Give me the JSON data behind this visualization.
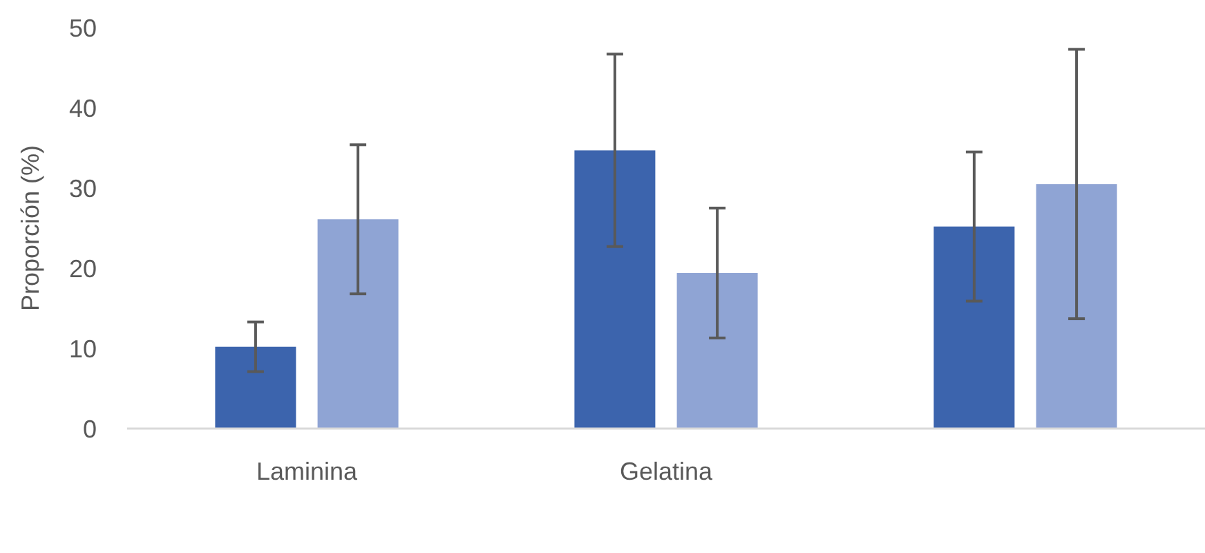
{
  "chart_data": {
    "type": "bar",
    "ylabel": "Proporción (%)",
    "categories": [
      "Laminina",
      "Gelatina",
      null
    ],
    "series": [
      {
        "color": "#3c64ad",
        "values": [
          10.2,
          34.7,
          25.2
        ],
        "errors": [
          3.1,
          12,
          9.3
        ]
      },
      {
        "color": "#8fa4d4",
        "values": [
          26.1,
          19.4,
          30.5
        ],
        "errors": [
          9.3,
          8.1,
          16.8
        ]
      }
    ],
    "ylim": [
      0,
      50
    ],
    "yticks": [
      0,
      10,
      20,
      30,
      40,
      50
    ],
    "grid": false
  }
}
